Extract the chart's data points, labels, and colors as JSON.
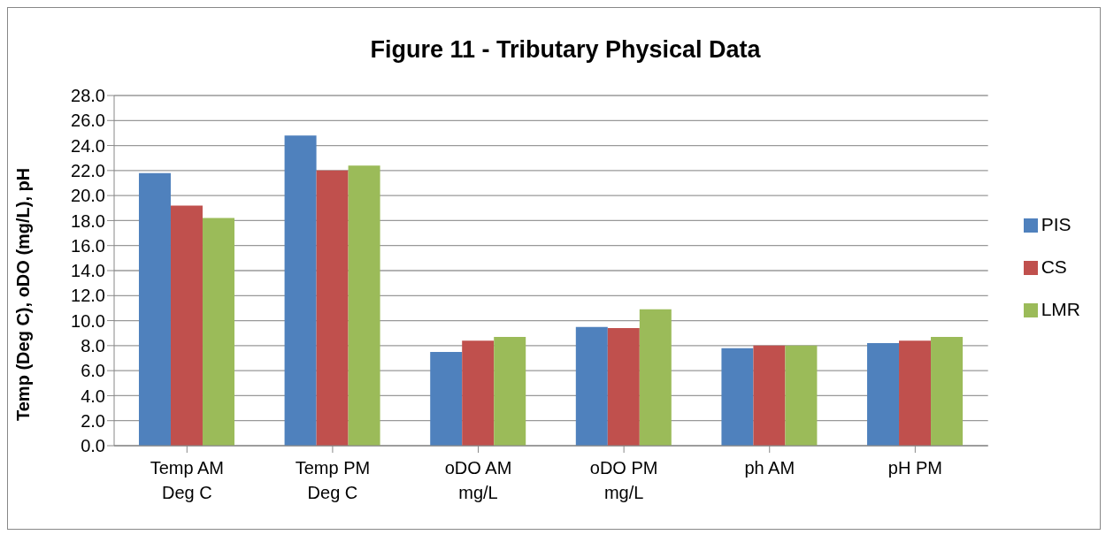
{
  "chart_data": {
    "type": "bar",
    "title": "Figure 11 - Tributary Physical Data",
    "ylabel": "Temp (Deg C), oDO (mg/L), pH",
    "categories": [
      "Temp AM Deg C",
      "Temp PM Deg C",
      "oDO AM mg/L",
      "oDO PM mg/L",
      "ph AM",
      "pH PM"
    ],
    "series": [
      {
        "name": "PIS",
        "color": "#4f81bd",
        "values": [
          21.8,
          24.8,
          7.5,
          9.5,
          7.8,
          8.2
        ]
      },
      {
        "name": "CS",
        "color": "#c0504d",
        "values": [
          19.2,
          22.0,
          8.4,
          9.4,
          8.0,
          8.4
        ]
      },
      {
        "name": "LMR",
        "color": "#9bbb59",
        "values": [
          18.2,
          22.4,
          8.7,
          10.9,
          8.0,
          8.7
        ]
      }
    ],
    "ylim": [
      0,
      28
    ],
    "yticks": [
      {
        "value": 0,
        "label": "0.0"
      },
      {
        "value": 2,
        "label": "2.0"
      },
      {
        "value": 4,
        "label": "4.0"
      },
      {
        "value": 6,
        "label": "6.0"
      },
      {
        "value": 8,
        "label": "8.0"
      },
      {
        "value": 10,
        "label": "10.0"
      },
      {
        "value": 12,
        "label": "12.0"
      },
      {
        "value": 14,
        "label": "14.0"
      },
      {
        "value": 16,
        "label": "16.0"
      },
      {
        "value": 18,
        "label": "18.0"
      },
      {
        "value": 20,
        "label": "20.0"
      },
      {
        "value": 22,
        "label": "22.0"
      },
      {
        "value": 24,
        "label": "24.0"
      },
      {
        "value": 26,
        "label": "26.0"
      },
      {
        "value": 28,
        "label": "28.0"
      }
    ],
    "grid": "y",
    "legend": "right"
  }
}
